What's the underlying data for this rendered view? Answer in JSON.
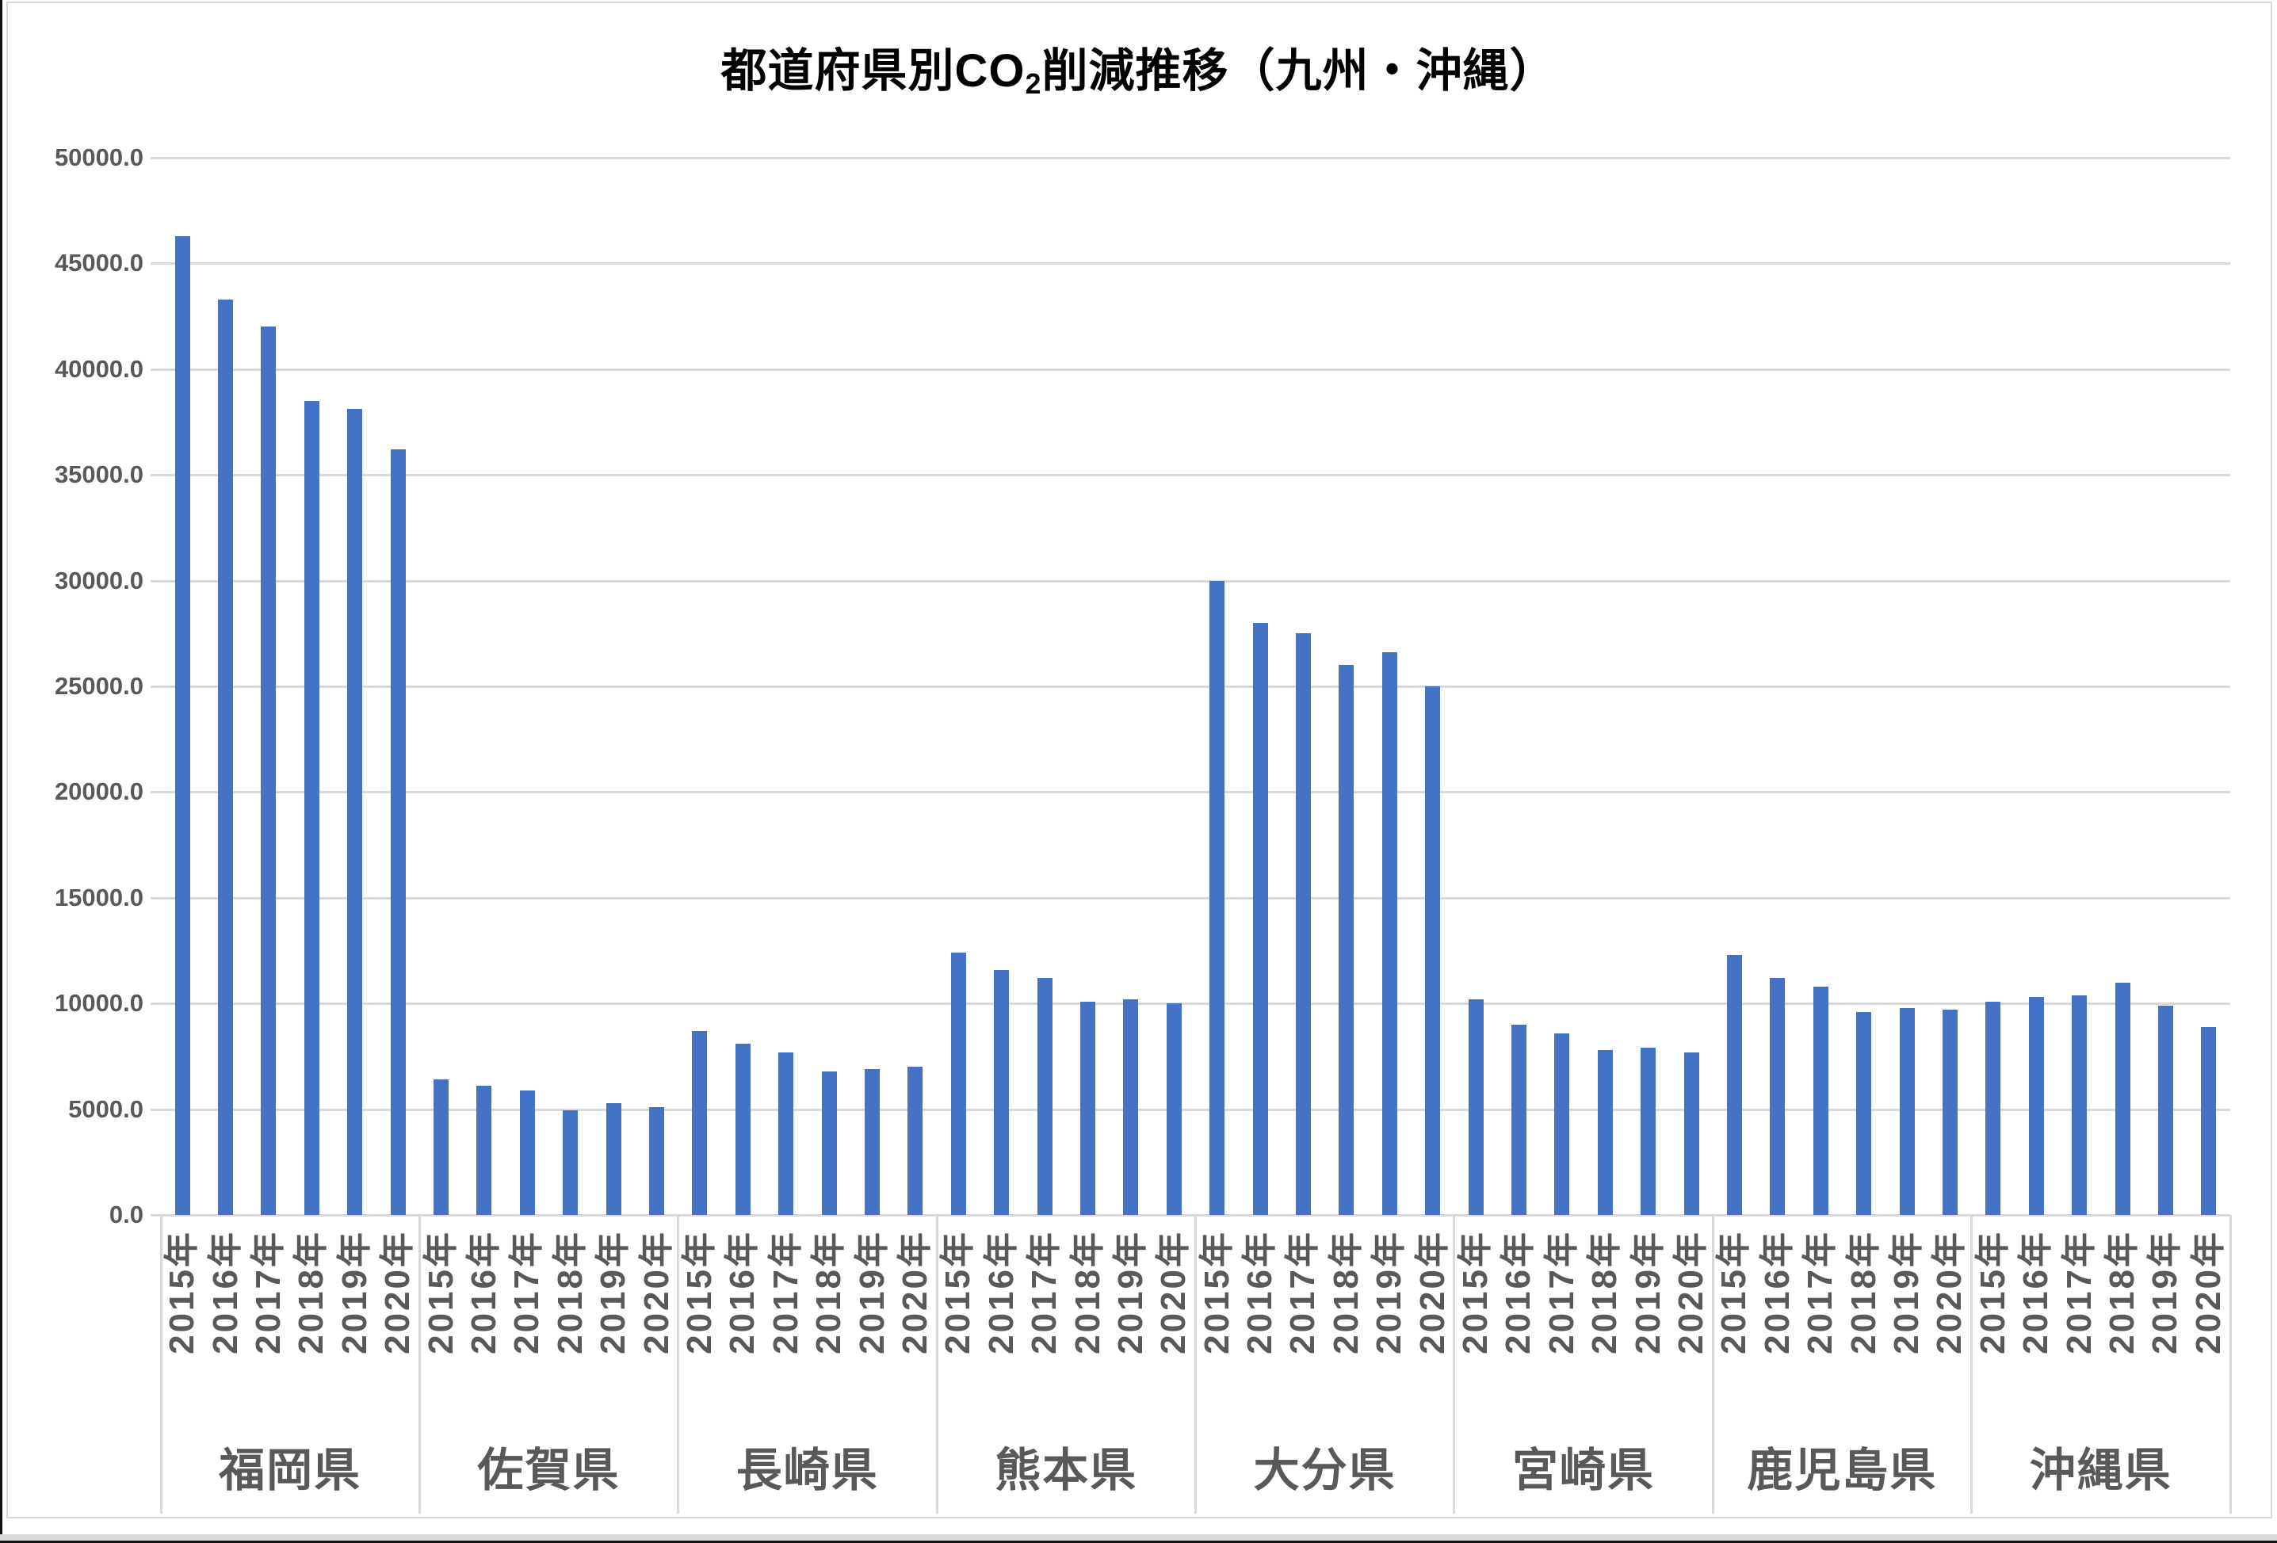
{
  "title": {
    "full": "都道府県別CO₂削減推移（九州・沖縄）",
    "prefix": "都道府県別CO",
    "sub": "2",
    "suffix": "削減推移（九州・沖縄）"
  },
  "colors": {
    "bar": "#4472C4",
    "gridline": "#D9D9D9",
    "axis_text": "#595959",
    "title_text": "#000000",
    "frame": "#D9D9D9",
    "bottom_band": "#D9D9D9",
    "edge_black": "#111111"
  },
  "y_axis": {
    "min": 0,
    "max": 50000,
    "step": 5000,
    "tick_labels": [
      "50000.0",
      "45000.0",
      "40000.0",
      "35000.0",
      "30000.0",
      "25000.0",
      "20000.0",
      "15000.0",
      "10000.0",
      "5000.0",
      "0.0"
    ]
  },
  "chart_data": {
    "type": "bar",
    "title": "都道府県別CO₂削減推移（九州・沖縄）",
    "xlabel": "",
    "ylabel": "",
    "ylim": [
      0,
      50000
    ],
    "grid": true,
    "legend": false,
    "years": [
      "2015年",
      "2016年",
      "2017年",
      "2018年",
      "2019年",
      "2020年"
    ],
    "groups": [
      {
        "prefecture": "福岡県",
        "values": [
          46300,
          43300,
          42000,
          38500,
          38100,
          36200
        ]
      },
      {
        "prefecture": "佐賀県",
        "values": [
          6400,
          6100,
          5900,
          4950,
          5300,
          5100
        ]
      },
      {
        "prefecture": "長崎県",
        "values": [
          8700,
          8100,
          7700,
          6800,
          6900,
          7000
        ]
      },
      {
        "prefecture": "熊本県",
        "values": [
          12400,
          11600,
          11200,
          10100,
          10200,
          10000
        ]
      },
      {
        "prefecture": "大分県",
        "values": [
          30000,
          28000,
          27500,
          26000,
          26600,
          25000
        ]
      },
      {
        "prefecture": "宮崎県",
        "values": [
          10200,
          9000,
          8600,
          7800,
          7900,
          7700
        ]
      },
      {
        "prefecture": "鹿児島県",
        "values": [
          12300,
          11200,
          10800,
          9600,
          9800,
          9700
        ]
      },
      {
        "prefecture": "沖縄県",
        "values": [
          10100,
          10300,
          10400,
          11000,
          9900,
          8900
        ]
      }
    ]
  }
}
